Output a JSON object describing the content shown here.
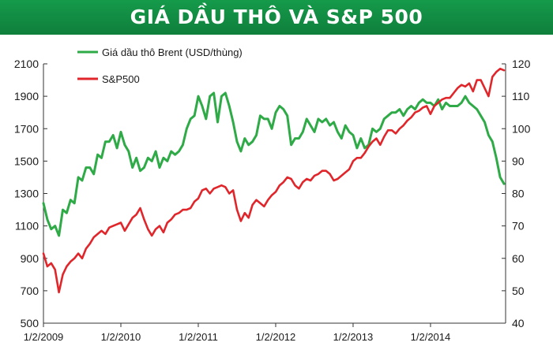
{
  "header": {
    "title": "GIÁ DẦU THÔ VÀ S&P 500"
  },
  "colors": {
    "banner": "#138f45",
    "oil": "#2eaa47",
    "sp": "#e0262b",
    "axis": "#333333",
    "grid": "#c8c8c8"
  },
  "chart_data": {
    "type": "line",
    "title": "GIÁ DẦU THÔ VÀ S&P 500",
    "x_tick_labels": [
      "1/2/2009",
      "1/2/2010",
      "1/2/2011",
      "1/2/2012",
      "1/2/2013",
      "1/2/2014"
    ],
    "x_range": [
      2009.0,
      2014.97
    ],
    "left_axis": {
      "ticks": [
        "2100",
        "1900",
        "1700",
        "1500",
        "1300",
        "1100",
        "900",
        "700",
        "500"
      ],
      "ylim": [
        500,
        2100
      ],
      "series": "S&P500"
    },
    "right_axis": {
      "ticks": [
        "120",
        "110",
        "100",
        "90",
        "80",
        "70",
        "60",
        "50",
        "40"
      ],
      "ylim": [
        40,
        120
      ],
      "series": "Giá dầu thô Brent (USD/thùng)"
    },
    "series": [
      {
        "name": "Giá dầu thô Brent (USD/thùng)",
        "axis": "right",
        "color": "#2eaa47",
        "x": [
          2009.0,
          2009.05,
          2009.1,
          2009.15,
          2009.2,
          2009.25,
          2009.3,
          2009.35,
          2009.4,
          2009.45,
          2009.5,
          2009.55,
          2009.6,
          2009.65,
          2009.7,
          2009.75,
          2009.8,
          2009.85,
          2009.9,
          2009.95,
          2010.0,
          2010.05,
          2010.1,
          2010.15,
          2010.2,
          2010.25,
          2010.3,
          2010.35,
          2010.4,
          2010.45,
          2010.5,
          2010.55,
          2010.6,
          2010.65,
          2010.7,
          2010.75,
          2010.8,
          2010.85,
          2010.9,
          2010.95,
          2011.0,
          2011.05,
          2011.1,
          2011.15,
          2011.2,
          2011.25,
          2011.3,
          2011.35,
          2011.4,
          2011.45,
          2011.5,
          2011.55,
          2011.6,
          2011.65,
          2011.7,
          2011.75,
          2011.8,
          2011.85,
          2011.9,
          2011.95,
          2012.0,
          2012.05,
          2012.1,
          2012.15,
          2012.2,
          2012.25,
          2012.3,
          2012.35,
          2012.4,
          2012.45,
          2012.5,
          2012.55,
          2012.6,
          2012.65,
          2012.7,
          2012.75,
          2012.8,
          2012.85,
          2012.9,
          2012.95,
          2013.0,
          2013.05,
          2013.1,
          2013.15,
          2013.2,
          2013.25,
          2013.3,
          2013.35,
          2013.4,
          2013.45,
          2013.5,
          2013.55,
          2013.6,
          2013.65,
          2013.7,
          2013.75,
          2013.8,
          2013.85,
          2013.9,
          2013.95,
          2014.0,
          2014.05,
          2014.1,
          2014.15,
          2014.2,
          2014.25,
          2014.3,
          2014.35,
          2014.4,
          2014.45,
          2014.5,
          2014.55,
          2014.6,
          2014.65,
          2014.7,
          2014.75,
          2014.8,
          2014.85,
          2014.9,
          2014.95
        ],
        "values": [
          77,
          72,
          69,
          70,
          67,
          75,
          74,
          78,
          77,
          85,
          84,
          88,
          88,
          86,
          92,
          91,
          96,
          96,
          98,
          94,
          99,
          95,
          93,
          88,
          91,
          87,
          88,
          91,
          90,
          93,
          88,
          91,
          90,
          93,
          92,
          93,
          95,
          100,
          103,
          104,
          110,
          107,
          103,
          110,
          111,
          102,
          110,
          111,
          107,
          102,
          96,
          93,
          97,
          95,
          96,
          98,
          104,
          103,
          103,
          100,
          105,
          107,
          106,
          104,
          95,
          97,
          97,
          99,
          103,
          101,
          99,
          103,
          102,
          103,
          101,
          102,
          99,
          97,
          101,
          99,
          98,
          94,
          97,
          94,
          95,
          100,
          99,
          100,
          103,
          104,
          105,
          105,
          106,
          104,
          106,
          107,
          106,
          108,
          109,
          108,
          108,
          107,
          109,
          106,
          108,
          107,
          107,
          107,
          108,
          110,
          108,
          107,
          106,
          104,
          102,
          98,
          96,
          91,
          85,
          83
        ]
      },
      {
        "name": "S&P500",
        "axis": "left",
        "color": "#e0262b",
        "x": [
          2009.0,
          2009.05,
          2009.1,
          2009.15,
          2009.2,
          2009.25,
          2009.3,
          2009.35,
          2009.4,
          2009.45,
          2009.5,
          2009.55,
          2009.6,
          2009.65,
          2009.7,
          2009.75,
          2009.8,
          2009.85,
          2009.9,
          2009.95,
          2010.0,
          2010.05,
          2010.1,
          2010.15,
          2010.2,
          2010.25,
          2010.3,
          2010.35,
          2010.4,
          2010.45,
          2010.5,
          2010.55,
          2010.6,
          2010.65,
          2010.7,
          2010.75,
          2010.8,
          2010.85,
          2010.9,
          2010.95,
          2011.0,
          2011.05,
          2011.1,
          2011.15,
          2011.2,
          2011.25,
          2011.3,
          2011.35,
          2011.4,
          2011.45,
          2011.5,
          2011.55,
          2011.6,
          2011.65,
          2011.7,
          2011.75,
          2011.8,
          2011.85,
          2011.9,
          2011.95,
          2012.0,
          2012.05,
          2012.1,
          2012.15,
          2012.2,
          2012.25,
          2012.3,
          2012.35,
          2012.4,
          2012.45,
          2012.5,
          2012.55,
          2012.6,
          2012.65,
          2012.7,
          2012.75,
          2012.8,
          2012.85,
          2012.9,
          2012.95,
          2013.0,
          2013.05,
          2013.1,
          2013.15,
          2013.2,
          2013.25,
          2013.3,
          2013.35,
          2013.4,
          2013.45,
          2013.5,
          2013.55,
          2013.6,
          2013.65,
          2013.7,
          2013.75,
          2013.8,
          2013.85,
          2013.9,
          2013.95,
          2014.0,
          2014.05,
          2014.1,
          2014.15,
          2014.2,
          2014.25,
          2014.3,
          2014.35,
          2014.4,
          2014.45,
          2014.5,
          2014.55,
          2014.6,
          2014.65,
          2014.7,
          2014.75,
          2014.8,
          2014.85,
          2014.9,
          2014.95
        ],
        "values": [
          930,
          850,
          870,
          830,
          690,
          800,
          850,
          880,
          900,
          930,
          900,
          960,
          990,
          1030,
          1050,
          1070,
          1050,
          1090,
          1100,
          1110,
          1120,
          1070,
          1110,
          1150,
          1170,
          1210,
          1140,
          1080,
          1040,
          1080,
          1100,
          1060,
          1120,
          1140,
          1170,
          1180,
          1200,
          1200,
          1210,
          1250,
          1270,
          1320,
          1330,
          1300,
          1330,
          1340,
          1350,
          1340,
          1300,
          1320,
          1200,
          1130,
          1180,
          1150,
          1230,
          1260,
          1240,
          1220,
          1260,
          1290,
          1310,
          1350,
          1370,
          1400,
          1390,
          1350,
          1330,
          1370,
          1390,
          1380,
          1410,
          1420,
          1440,
          1440,
          1420,
          1380,
          1390,
          1410,
          1430,
          1450,
          1500,
          1520,
          1520,
          1550,
          1590,
          1620,
          1640,
          1600,
          1650,
          1690,
          1690,
          1670,
          1700,
          1720,
          1750,
          1770,
          1800,
          1810,
          1830,
          1840,
          1790,
          1840,
          1860,
          1880,
          1890,
          1890,
          1920,
          1950,
          1970,
          1960,
          1980,
          1930,
          2000,
          2000,
          1950,
          1900,
          2020,
          2050,
          2070,
          2060
        ]
      }
    ],
    "legend": {
      "placement": "top-left",
      "entries": [
        "Giá dầu thô Brent (USD/thùng)",
        "S&P500"
      ]
    },
    "grid": false
  }
}
